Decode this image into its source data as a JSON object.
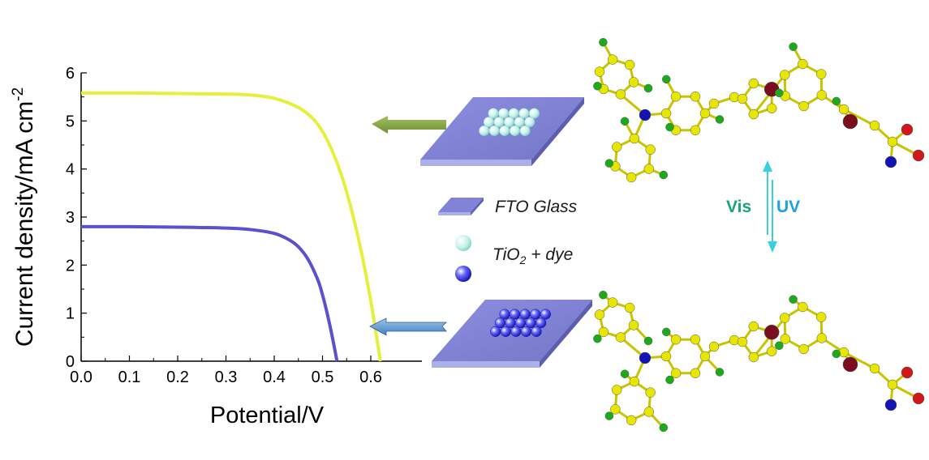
{
  "chart_data": {
    "type": "line",
    "xlabel": "Potential/V",
    "ylabel_main": "Current density/mA cm",
    "ylabel_sup": "-2",
    "xlim": [
      0.0,
      0.65
    ],
    "ylim": [
      0,
      6
    ],
    "xticks": [
      "0.0",
      "0.1",
      "0.2",
      "0.3",
      "0.4",
      "0.5",
      "0.6"
    ],
    "yticks": [
      "0",
      "1",
      "2",
      "3",
      "4",
      "5",
      "6"
    ],
    "grid": false,
    "series": [
      {
        "color": "#e6f03c",
        "x": [
          0.0,
          0.1,
          0.2,
          0.3,
          0.35,
          0.4,
          0.45,
          0.48,
          0.5,
          0.52,
          0.54,
          0.56,
          0.58,
          0.6,
          0.62
        ],
        "y": [
          5.58,
          5.58,
          5.57,
          5.56,
          5.54,
          5.47,
          5.28,
          5.05,
          4.78,
          4.38,
          3.85,
          3.15,
          2.3,
          1.25,
          0.0
        ]
      },
      {
        "color": "#5a50d0",
        "x": [
          0.0,
          0.1,
          0.2,
          0.3,
          0.35,
          0.4,
          0.43,
          0.45,
          0.47,
          0.49,
          0.5,
          0.51,
          0.52,
          0.53
        ],
        "y": [
          2.8,
          2.8,
          2.79,
          2.77,
          2.74,
          2.66,
          2.53,
          2.38,
          2.12,
          1.7,
          1.38,
          0.98,
          0.52,
          0.0
        ]
      }
    ]
  },
  "legend": {
    "fto_label": "FTO Glass",
    "tio2_main": "TiO",
    "tio2_sub": "2",
    "tio2_rest": " + dye"
  },
  "conversion": {
    "vis_label": "Vis",
    "uv_label": "UV",
    "vis_color": "#1aa37a",
    "uv_color": "#1ea0e6"
  },
  "icons": [
    "arrow-left-green-icon",
    "arrow-left-blue-icon",
    "fto-slab-icon",
    "tio2-sphere-icon",
    "molecule-icon"
  ]
}
